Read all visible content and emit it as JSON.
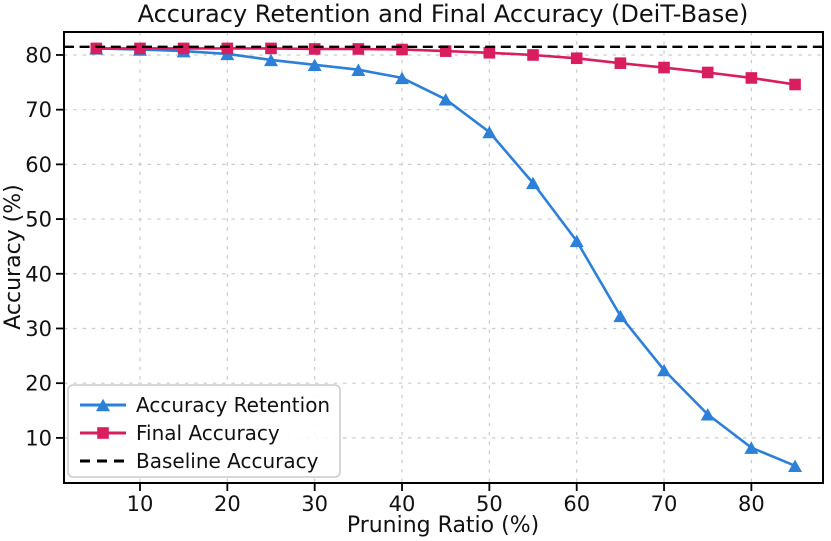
{
  "title": "Accuracy Retention and Final Accuracy (DeiT-Base)",
  "axes": {
    "x": {
      "label": "Pruning Ratio (%)",
      "ticks": [
        10,
        20,
        30,
        40,
        50,
        60,
        70,
        80
      ]
    },
    "y": {
      "label": "Accuracy (%)",
      "ticks": [
        10,
        20,
        30,
        40,
        50,
        60,
        70,
        80
      ]
    }
  },
  "legend": {
    "position": "lower-left",
    "entries": [
      "Accuracy Retention",
      "Final Accuracy",
      "Baseline Accuracy"
    ]
  },
  "colors": {
    "accuracy_retention": "#2C80D8",
    "final_accuracy": "#D81E5F",
    "baseline": "#000000",
    "grid": "#cbcbcb",
    "spine": "#000000",
    "background": "#ffffff"
  },
  "chart_data": {
    "type": "line",
    "title": "Accuracy Retention and Final Accuracy (DeiT-Base)",
    "xlabel": "Pruning Ratio (%)",
    "ylabel": "Accuracy (%)",
    "x": [
      5,
      10,
      15,
      20,
      25,
      30,
      35,
      40,
      45,
      50,
      55,
      60,
      65,
      70,
      75,
      80,
      85
    ],
    "xticks": [
      10,
      20,
      30,
      40,
      50,
      60,
      70,
      80
    ],
    "yticks": [
      10,
      20,
      30,
      40,
      50,
      60,
      70,
      80
    ],
    "xlim": [
      1.3,
      88.2
    ],
    "ylim": [
      1.75,
      84.2
    ],
    "grid": true,
    "grid_style": "dashed",
    "legend_position": "lower left",
    "series": [
      {
        "name": "Accuracy Retention",
        "color": "#2C80D8",
        "marker": "triangle",
        "linestyle": "solid",
        "values": [
          81.2,
          81.0,
          80.7,
          80.2,
          79.1,
          78.2,
          77.3,
          75.8,
          71.9,
          65.9,
          56.6,
          46.0,
          32.3,
          22.4,
          14.3,
          8.2,
          4.9
        ]
      },
      {
        "name": "Final Accuracy",
        "color": "#D81E5F",
        "marker": "square",
        "linestyle": "solid",
        "values": [
          81.2,
          81.2,
          81.2,
          81.2,
          81.2,
          81.1,
          81.1,
          81.0,
          80.7,
          80.4,
          80.0,
          79.4,
          78.5,
          77.7,
          76.8,
          75.8,
          74.6
        ]
      },
      {
        "name": "Baseline Accuracy",
        "color": "#000000",
        "marker": "none",
        "linestyle": "dashed",
        "baseline_value": 81.5
      }
    ]
  }
}
